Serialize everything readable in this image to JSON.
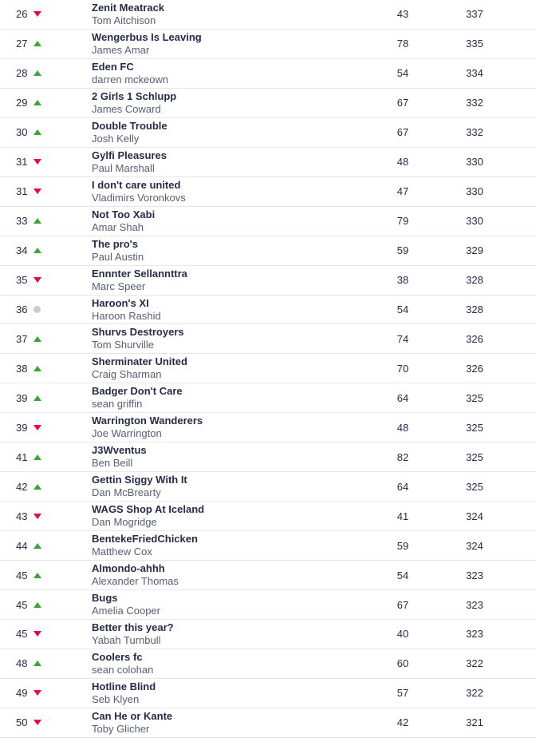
{
  "colors": {
    "text": "#262b49",
    "manager": "#575d75",
    "up_arrow": "#3fa33c",
    "down_arrow": "#e90052",
    "no_move_dot": "#cccccc",
    "divider": "#e7e7e7",
    "background": "#ffffff"
  },
  "table": {
    "description": "Fantasy league standings rows 26-50",
    "columns": [
      "rank",
      "movement",
      "team",
      "manager",
      "gameweek_points",
      "total_points"
    ]
  },
  "rows": [
    {
      "rank": "26",
      "movement": "down",
      "team": "Zenit Meatrack",
      "manager": "Tom Aitchison",
      "gw": "43",
      "total": "337"
    },
    {
      "rank": "27",
      "movement": "up",
      "team": "Wengerbus Is Leaving",
      "manager": "James Amar",
      "gw": "78",
      "total": "335"
    },
    {
      "rank": "28",
      "movement": "up",
      "team": "Eden FC",
      "manager": "darren mckeown",
      "gw": "54",
      "total": "334"
    },
    {
      "rank": "29",
      "movement": "up",
      "team": "2 Girls 1 Schlupp",
      "manager": "James Coward",
      "gw": "67",
      "total": "332"
    },
    {
      "rank": "30",
      "movement": "up",
      "team": "Double Trouble",
      "manager": "Josh Kelly",
      "gw": "67",
      "total": "332"
    },
    {
      "rank": "31",
      "movement": "down",
      "team": "Gylfi Pleasures",
      "manager": "Paul Marshall",
      "gw": "48",
      "total": "330"
    },
    {
      "rank": "31",
      "movement": "down",
      "team": "I don't care united",
      "manager": "Vladimirs Voronkovs",
      "gw": "47",
      "total": "330"
    },
    {
      "rank": "33",
      "movement": "up",
      "team": "Not Too Xabi",
      "manager": "Amar Shah",
      "gw": "79",
      "total": "330"
    },
    {
      "rank": "34",
      "movement": "up",
      "team": "The pro's",
      "manager": "Paul Austin",
      "gw": "59",
      "total": "329"
    },
    {
      "rank": "35",
      "movement": "down",
      "team": "Ennnter Sellannttra",
      "manager": "Marc Speer",
      "gw": "38",
      "total": "328"
    },
    {
      "rank": "36",
      "movement": "same",
      "team": "Haroon's XI",
      "manager": "Haroon Rashid",
      "gw": "54",
      "total": "328"
    },
    {
      "rank": "37",
      "movement": "up",
      "team": "Shurvs Destroyers",
      "manager": "Tom Shurville",
      "gw": "74",
      "total": "326"
    },
    {
      "rank": "38",
      "movement": "up",
      "team": "Sherminater United",
      "manager": "Craig Sharman",
      "gw": "70",
      "total": "326"
    },
    {
      "rank": "39",
      "movement": "up",
      "team": "Badger Don't Care",
      "manager": "sean griffin",
      "gw": "64",
      "total": "325"
    },
    {
      "rank": "39",
      "movement": "down",
      "team": "Warrington Wanderers",
      "manager": "Joe Warrington",
      "gw": "48",
      "total": "325"
    },
    {
      "rank": "41",
      "movement": "up",
      "team": "J3Wventus",
      "manager": "Ben Beill",
      "gw": "82",
      "total": "325"
    },
    {
      "rank": "42",
      "movement": "up",
      "team": "Gettin Siggy With It",
      "manager": "Dan McBrearty",
      "gw": "64",
      "total": "325"
    },
    {
      "rank": "43",
      "movement": "down",
      "team": "WAGS Shop At Iceland",
      "manager": "Dan Mogridge",
      "gw": "41",
      "total": "324"
    },
    {
      "rank": "44",
      "movement": "up",
      "team": "BentekeFriedChicken",
      "manager": "Matthew Cox",
      "gw": "59",
      "total": "324"
    },
    {
      "rank": "45",
      "movement": "up",
      "team": "Almondo-ahhh",
      "manager": "Alexander Thomas",
      "gw": "54",
      "total": "323"
    },
    {
      "rank": "45",
      "movement": "up",
      "team": "Bugs",
      "manager": "Amelia Cooper",
      "gw": "67",
      "total": "323"
    },
    {
      "rank": "45",
      "movement": "down",
      "team": "Better this year?",
      "manager": "Yabah Turnbull",
      "gw": "40",
      "total": "323"
    },
    {
      "rank": "48",
      "movement": "up",
      "team": "Coolers fc",
      "manager": "sean colohan",
      "gw": "60",
      "total": "322"
    },
    {
      "rank": "49",
      "movement": "down",
      "team": "Hotline Blind",
      "manager": "Seb Klyen",
      "gw": "57",
      "total": "322"
    },
    {
      "rank": "50",
      "movement": "down",
      "team": "Can He or Kante",
      "manager": "Toby Glicher",
      "gw": "42",
      "total": "321"
    }
  ]
}
